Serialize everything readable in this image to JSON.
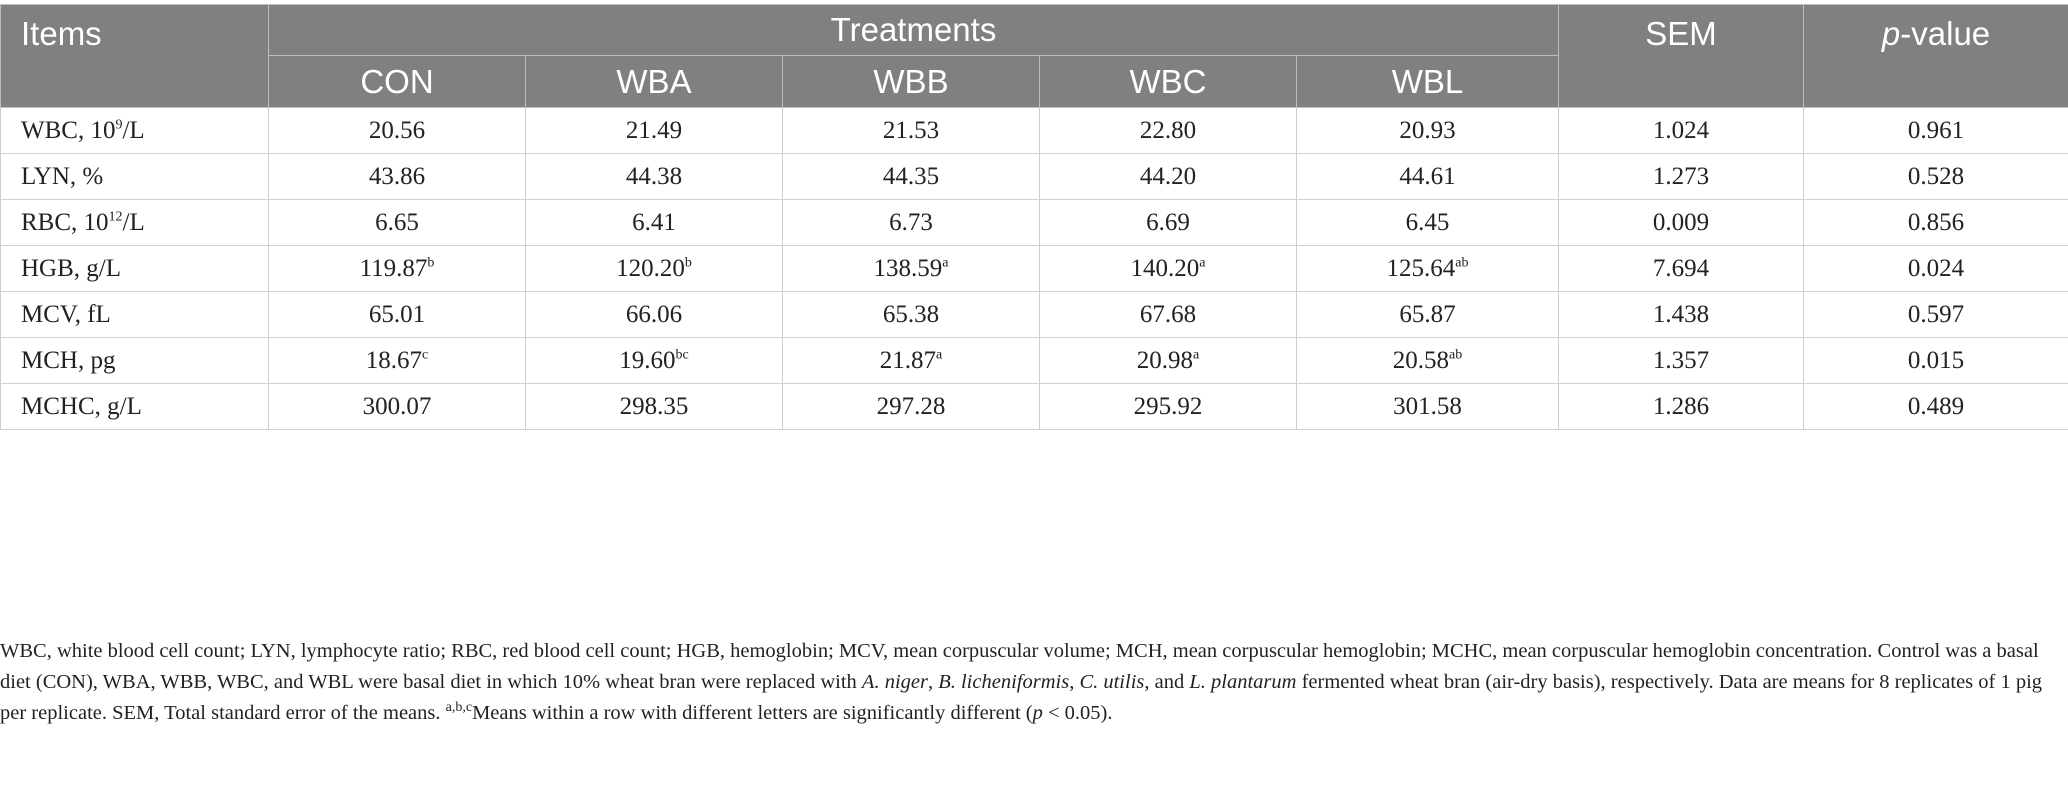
{
  "header": {
    "items": "Items",
    "treatments": "Treatments",
    "sem": "SEM",
    "pvalue_italic": "p",
    "pvalue_rest": "-value",
    "groups": [
      "CON",
      "WBA",
      "WBB",
      "WBC",
      "WBL"
    ]
  },
  "rows": [
    {
      "label": "WBC, 10",
      "label_sup": "9",
      "label_tail": "/L",
      "values": [
        {
          "v": "20.56",
          "s": ""
        },
        {
          "v": "21.49",
          "s": ""
        },
        {
          "v": "21.53",
          "s": ""
        },
        {
          "v": "22.80",
          "s": ""
        },
        {
          "v": "20.93",
          "s": ""
        }
      ],
      "sem": "1.024",
      "p": "0.961"
    },
    {
      "label": "LYN, %",
      "label_sup": "",
      "label_tail": "",
      "values": [
        {
          "v": "43.86",
          "s": ""
        },
        {
          "v": "44.38",
          "s": ""
        },
        {
          "v": "44.35",
          "s": ""
        },
        {
          "v": "44.20",
          "s": ""
        },
        {
          "v": "44.61",
          "s": ""
        }
      ],
      "sem": "1.273",
      "p": "0.528"
    },
    {
      "label": "RBC, 10",
      "label_sup": "12",
      "label_tail": "/L",
      "values": [
        {
          "v": "6.65",
          "s": ""
        },
        {
          "v": "6.41",
          "s": ""
        },
        {
          "v": "6.73",
          "s": ""
        },
        {
          "v": "6.69",
          "s": ""
        },
        {
          "v": "6.45",
          "s": ""
        }
      ],
      "sem": "0.009",
      "p": "0.856"
    },
    {
      "label": "HGB, g/L",
      "label_sup": "",
      "label_tail": "",
      "values": [
        {
          "v": "119.87",
          "s": "b"
        },
        {
          "v": "120.20",
          "s": "b"
        },
        {
          "v": "138.59",
          "s": "a"
        },
        {
          "v": "140.20",
          "s": "a"
        },
        {
          "v": "125.64",
          "s": "ab"
        }
      ],
      "sem": "7.694",
      "p": "0.024"
    },
    {
      "label": "MCV, fL",
      "label_sup": "",
      "label_tail": "",
      "values": [
        {
          "v": "65.01",
          "s": ""
        },
        {
          "v": "66.06",
          "s": ""
        },
        {
          "v": "65.38",
          "s": ""
        },
        {
          "v": "67.68",
          "s": ""
        },
        {
          "v": "65.87",
          "s": ""
        }
      ],
      "sem": "1.438",
      "p": "0.597"
    },
    {
      "label": "MCH, pg",
      "label_sup": "",
      "label_tail": "",
      "values": [
        {
          "v": "18.67",
          "s": "c"
        },
        {
          "v": "19.60",
          "s": "bc"
        },
        {
          "v": "21.87",
          "s": "a"
        },
        {
          "v": "20.98",
          "s": "a"
        },
        {
          "v": "20.58",
          "s": "ab"
        }
      ],
      "sem": "1.357",
      "p": "0.015"
    },
    {
      "label": "MCHC, g/L",
      "label_sup": "",
      "label_tail": "",
      "values": [
        {
          "v": "300.07",
          "s": ""
        },
        {
          "v": "298.35",
          "s": ""
        },
        {
          "v": "297.28",
          "s": ""
        },
        {
          "v": "295.92",
          "s": ""
        },
        {
          "v": "301.58",
          "s": ""
        }
      ],
      "sem": "1.286",
      "p": "0.489"
    }
  ],
  "footnote": {
    "part1": "WBC, white blood cell count; LYN, lymphocyte ratio; RBC, red blood cell count; HGB, hemoglobin; MCV, mean corpuscular volume; MCH, mean corpuscular hemoglobin; MCHC, mean corpuscular hemoglobin concentration. Control was a basal diet (CON), WBA, WBB, WBC, and WBL were basal diet in which 10% wheat bran were replaced with ",
    "sp1": "A. niger",
    "part2": ", ",
    "sp2": "B. licheniformis",
    "part3": ", ",
    "sp3": "C. utilis",
    "part4": ", and ",
    "sp4": "L. plantarum",
    "part5": " fermented wheat bran (air-dry basis), respectively. Data are means for 8 replicates of 1 pig per replicate. SEM, Total standard error of the means. ",
    "sup": "a,b,c",
    "part6": "Means within a row with different letters are significantly different (",
    "p_italic": "p",
    "part7": " < 0.05)."
  }
}
